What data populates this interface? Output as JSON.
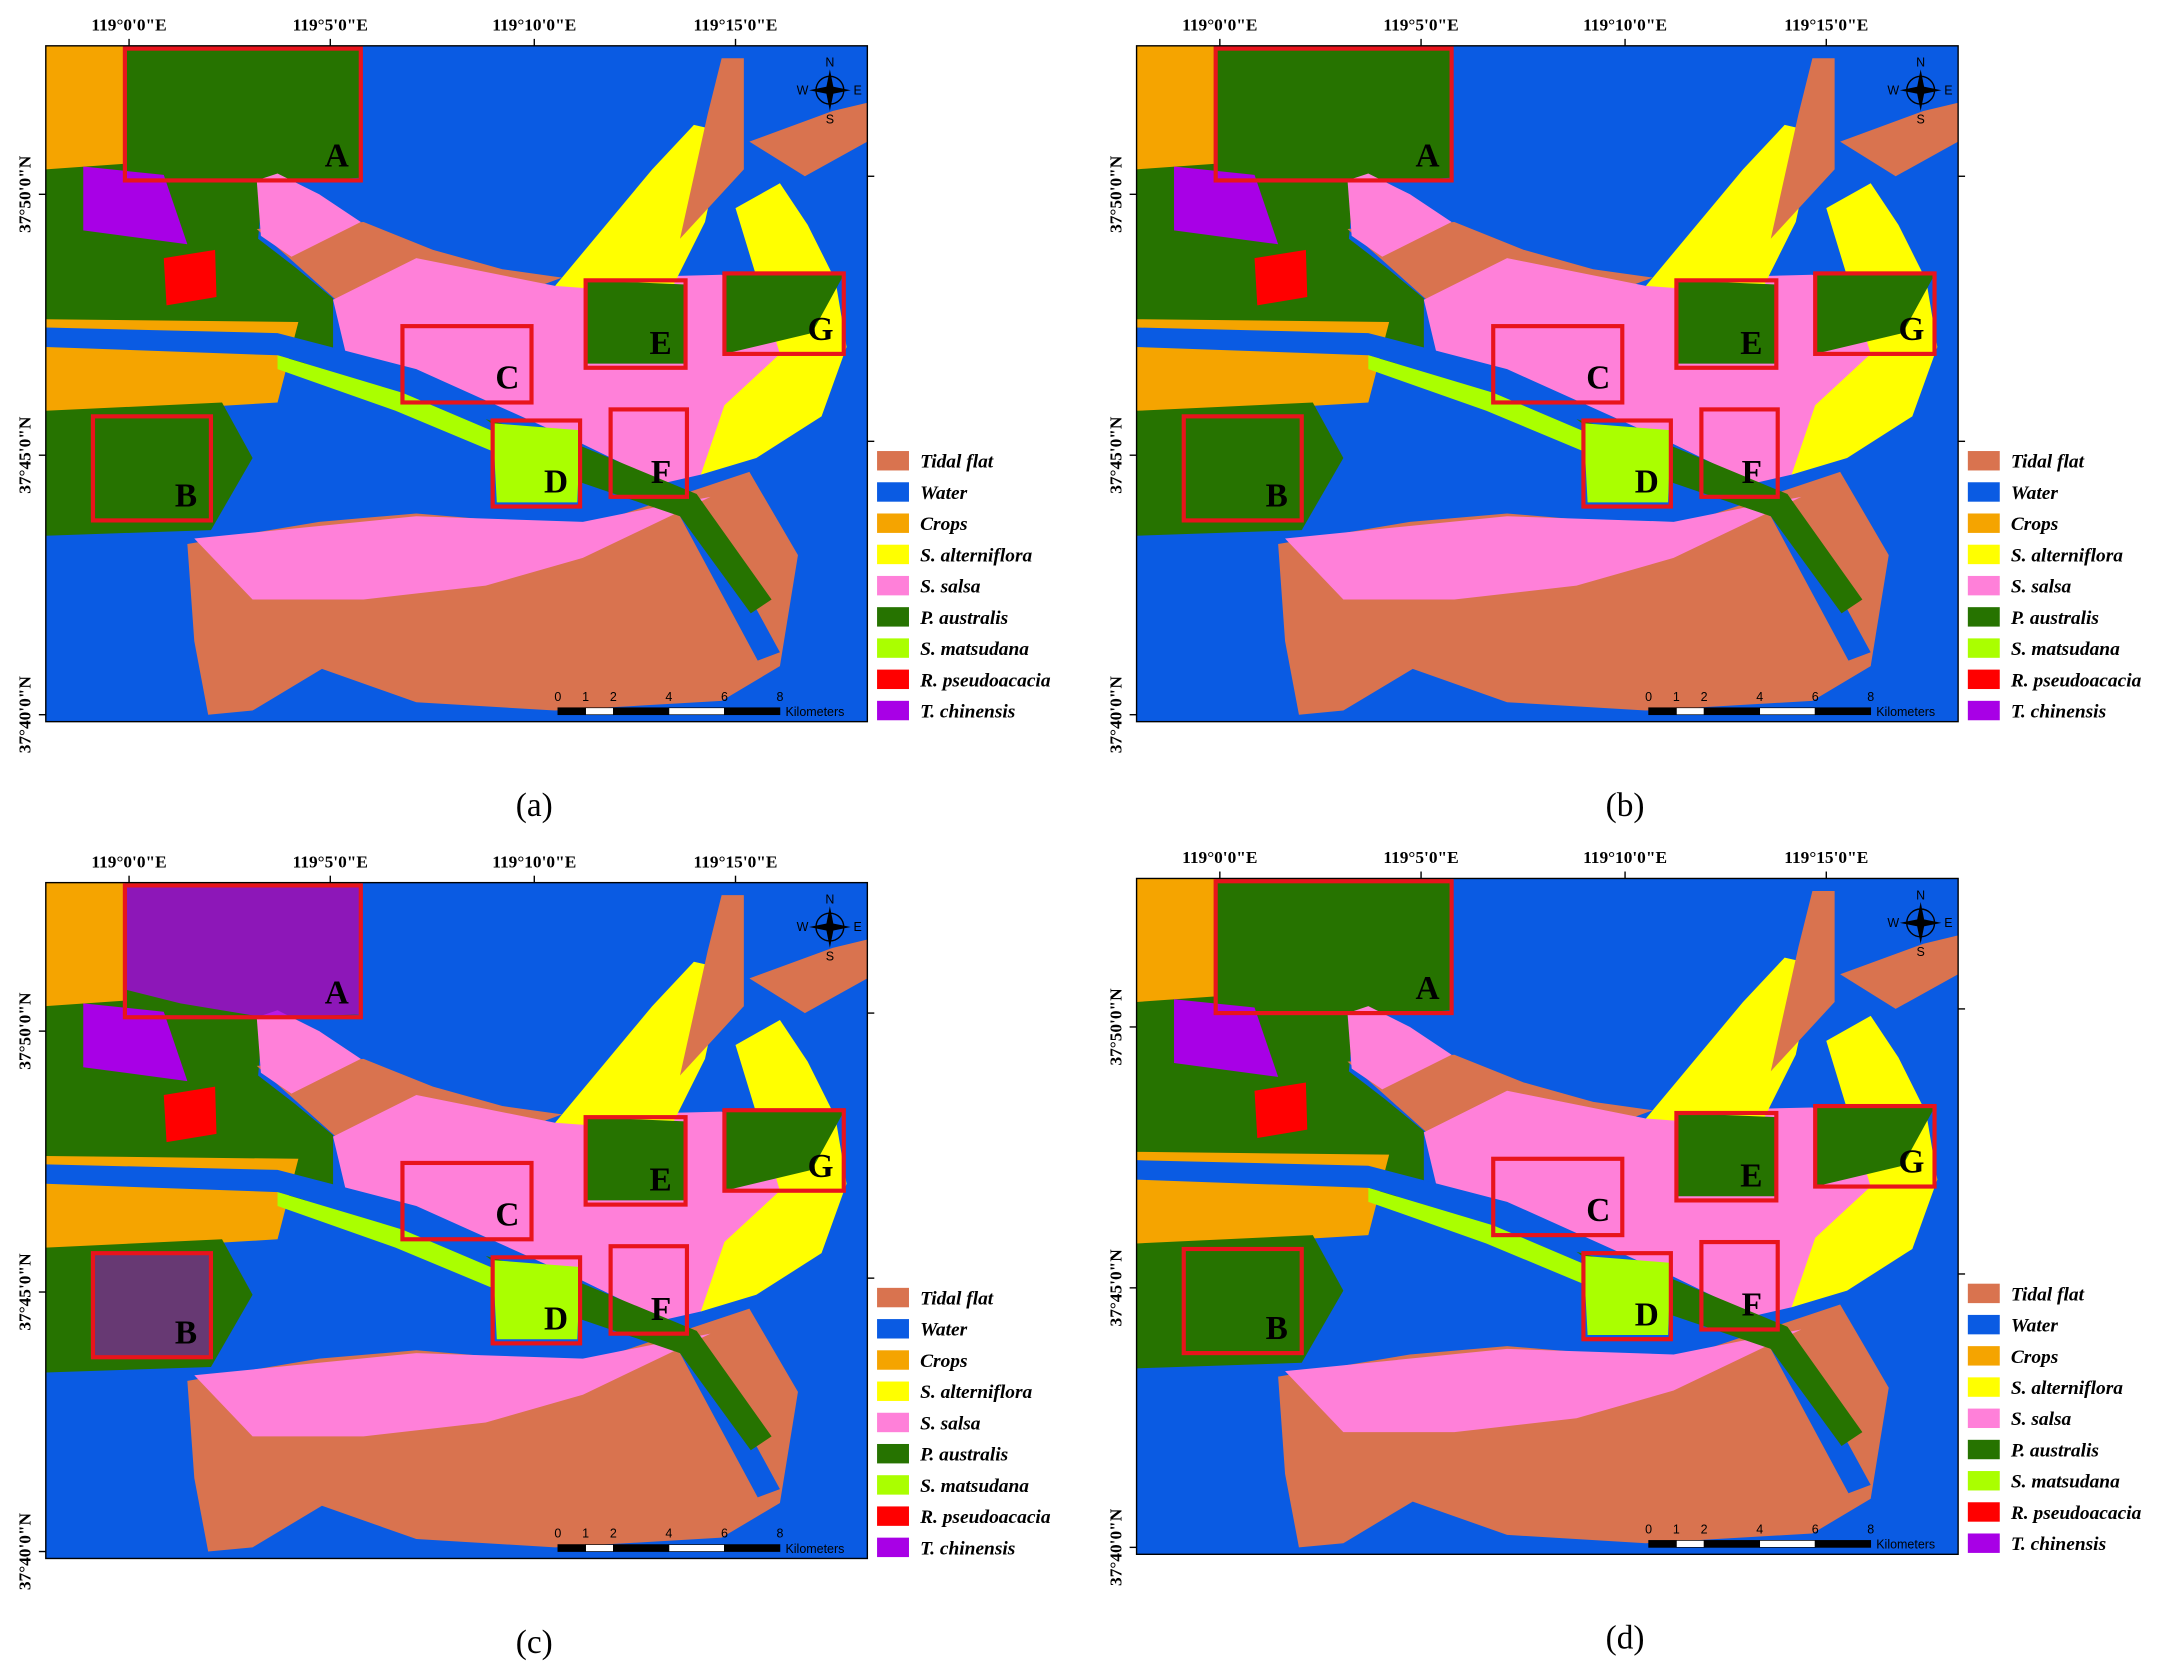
{
  "map": {
    "lon_labels": [
      "119°0'0\"E",
      "119°5'0\"E",
      "119°10'0\"E",
      "119°15'0\"E"
    ],
    "lat_labels": [
      "37°50'0\"N",
      "37°45'0\"N",
      "37°40'0\"N"
    ],
    "compass": {
      "n": "N",
      "e": "E",
      "s": "S",
      "w": "W"
    },
    "scale_bar": {
      "ticks": [
        0,
        1,
        2,
        4,
        6,
        8
      ],
      "unit": "Kilometers"
    },
    "boxes": [
      "A",
      "B",
      "C",
      "D",
      "E",
      "F",
      "G"
    ],
    "legend": [
      {
        "label": "Tidal flat",
        "color": "#d9734f"
      },
      {
        "label": "Water",
        "color": "#0a5be3"
      },
      {
        "label": "Crops",
        "color": "#f5a400"
      },
      {
        "label": "S. alterniflora",
        "color": "#ffff00"
      },
      {
        "label": "S. salsa",
        "color": "#ff80d9"
      },
      {
        "label": "P. australis",
        "color": "#267300"
      },
      {
        "label": "S. matsudana",
        "color": "#aaff00"
      },
      {
        "label": "R. pseudoacacia",
        "color": "#ff0000"
      },
      {
        "label": "T. chinensis",
        "color": "#a800e6"
      }
    ]
  },
  "panels": [
    {
      "label": "(a)"
    },
    {
      "label": "(b)"
    },
    {
      "label": "(c)"
    },
    {
      "label": "(d)"
    }
  ]
}
